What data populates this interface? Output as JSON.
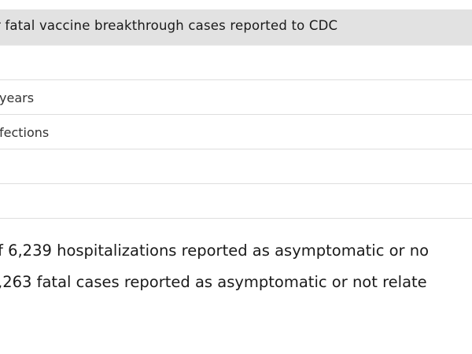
{
  "table": {
    "title": "r fatal vaccine breakthrough cases reported to CDC",
    "rows": [
      "",
      "years",
      "fections",
      "",
      ""
    ]
  },
  "notes": [
    "f 6,239 hospitalizations reported as asymptomatic or no",
    ",263 fatal cases reported as asymptomatic or not relate"
  ]
}
